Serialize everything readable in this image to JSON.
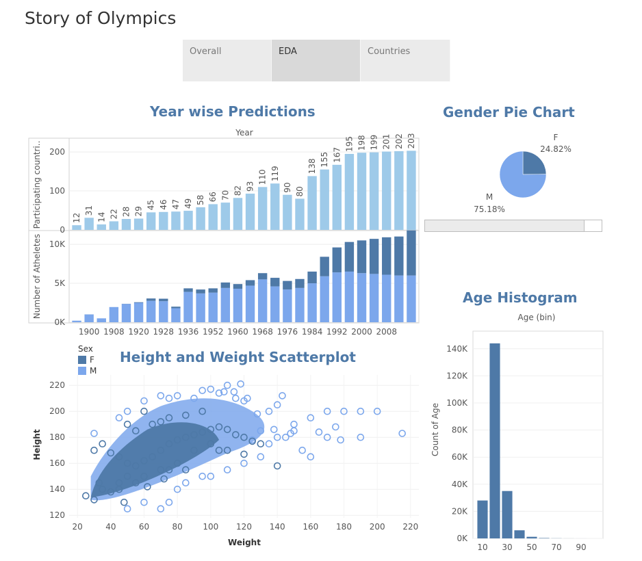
{
  "app": {
    "title": "Story of Olympics"
  },
  "tabs": [
    {
      "label": "Overall",
      "active": false
    },
    {
      "label": "EDA",
      "active": true
    },
    {
      "label": "Countries",
      "active": false
    }
  ],
  "colors": {
    "light_bar": "#9ecae9",
    "dark": "#4e79a7",
    "male": "#7ca7ec",
    "title": "#4e79a7"
  },
  "titles": {
    "year": "Year wise Predictions",
    "gender": "Gender Pie Chart",
    "age": "Age Histogram",
    "scatter": "Height and Weight Scatterplot"
  },
  "legend": {
    "title": "Sex",
    "f": "F",
    "m": "M"
  },
  "gender_slider": {
    "fraction": 0.9
  },
  "chart_data": [
    {
      "type": "bar",
      "id": "countries",
      "title": "Year",
      "ylabel": "Participating countri..",
      "ylim": [
        0,
        230
      ],
      "yticks": [
        0,
        100,
        200
      ],
      "xticks": [
        "1900",
        "1908",
        "1920",
        "1928",
        "1936",
        "1952",
        "1960",
        "1968",
        "1976",
        "1984",
        "1992",
        "2000",
        "2008"
      ],
      "values": [
        12,
        31,
        14,
        22,
        28,
        29,
        45,
        46,
        47,
        49,
        58,
        66,
        70,
        82,
        93,
        110,
        119,
        90,
        80,
        138,
        155,
        167,
        195,
        198,
        199,
        201,
        202,
        203
      ]
    },
    {
      "type": "bar",
      "id": "athletes",
      "stacked": true,
      "ylabel": "Number of Atheletes",
      "ylim": [
        0,
        11500
      ],
      "yticks": [
        {
          "v": 0,
          "label": "0K"
        },
        {
          "v": 5000,
          "label": "5K"
        },
        {
          "v": 10000,
          "label": "10K"
        }
      ],
      "series": [
        {
          "name": "M",
          "values": [
            200,
            1000,
            500,
            1950,
            2350,
            2500,
            2750,
            2700,
            1800,
            3900,
            3700,
            3800,
            4400,
            4300,
            4700,
            5500,
            4600,
            4200,
            4400,
            5000,
            5900,
            6400,
            6500,
            6300,
            6200,
            6100,
            6000,
            6000
          ]
        },
        {
          "name": "F",
          "values": [
            0,
            10,
            0,
            0,
            20,
            70,
            300,
            320,
            200,
            450,
            500,
            550,
            700,
            600,
            700,
            800,
            1100,
            1100,
            1150,
            1500,
            2500,
            3200,
            3800,
            4200,
            4500,
            4800,
            5000,
            5800
          ]
        }
      ]
    },
    {
      "type": "pie",
      "id": "gender",
      "slices": [
        {
          "name": "F",
          "value": 24.82,
          "label": "24.82%"
        },
        {
          "name": "M",
          "value": 75.18,
          "label": "75.18%"
        }
      ]
    },
    {
      "type": "bar",
      "id": "age",
      "title": "Age (bin)",
      "xlabel": "",
      "ylabel": "Count of Age",
      "ylim": [
        0,
        150000
      ],
      "yticks": [
        {
          "v": 0,
          "label": "0K"
        },
        {
          "v": 20000,
          "label": "20K"
        },
        {
          "v": 40000,
          "label": "40K"
        },
        {
          "v": 60000,
          "label": "60K"
        },
        {
          "v": 80000,
          "label": "80K"
        },
        {
          "v": 100000,
          "label": "100K"
        },
        {
          "v": 120000,
          "label": "120K"
        },
        {
          "v": 140000,
          "label": "140K"
        }
      ],
      "xticks": [
        10,
        30,
        50,
        70,
        90
      ],
      "bins": [
        10,
        20,
        30,
        40,
        50,
        60,
        70,
        80,
        90
      ],
      "values": [
        28000,
        144000,
        35000,
        6000,
        1200,
        300,
        100,
        30,
        10
      ]
    },
    {
      "type": "scatter",
      "id": "height_weight",
      "xlabel": "Weight",
      "ylabel": "Height",
      "xlim": [
        15,
        225
      ],
      "ylim": [
        118,
        228
      ],
      "xticks": [
        20,
        40,
        60,
        80,
        100,
        120,
        140,
        160,
        180,
        200,
        220
      ],
      "yticks": [
        120,
        140,
        160,
        180,
        200,
        220
      ],
      "series": [
        {
          "name": "M",
          "points": [
            [
              215,
              183
            ],
            [
              200,
              200
            ],
            [
              190,
              200
            ],
            [
              180,
              200
            ],
            [
              170,
              200
            ],
            [
              160,
              195
            ],
            [
              150,
              190
            ],
            [
              148,
              183
            ],
            [
              143,
              212
            ],
            [
              140,
              205
            ],
            [
              135,
              200
            ],
            [
              128,
              198
            ],
            [
              122,
              210
            ],
            [
              120,
              208
            ],
            [
              118,
              221
            ],
            [
              115,
              210
            ],
            [
              114,
              215
            ],
            [
              110,
              220
            ],
            [
              108,
              215
            ],
            [
              105,
              214
            ],
            [
              100,
              217
            ],
            [
              95,
              216
            ],
            [
              90,
              210
            ],
            [
              80,
              212
            ],
            [
              75,
              210
            ],
            [
              70,
              212
            ],
            [
              60,
              208
            ],
            [
              50,
              200
            ],
            [
              45,
              195
            ],
            [
              140,
              180
            ],
            [
              130,
              185
            ],
            [
              125,
              178
            ],
            [
              160,
              165
            ],
            [
              155,
              170
            ],
            [
              190,
              180
            ],
            [
              175,
              188
            ],
            [
              178,
              178
            ],
            [
              170,
              180
            ],
            [
              30,
              183
            ],
            [
              50,
              125
            ],
            [
              60,
              130
            ],
            [
              70,
              125
            ],
            [
              75,
              130
            ],
            [
              80,
              140
            ],
            [
              85,
              145
            ],
            [
              95,
              150
            ],
            [
              100,
              150
            ],
            [
              110,
              155
            ],
            [
              120,
              160
            ],
            [
              130,
              165
            ],
            [
              135,
              175
            ],
            [
              145,
              180
            ],
            [
              150,
              185
            ],
            [
              138,
              186
            ],
            [
              165,
              184
            ]
          ]
        },
        {
          "name": "F",
          "points": [
            [
              25,
              135
            ],
            [
              30,
              132
            ],
            [
              35,
              140
            ],
            [
              40,
              138
            ],
            [
              45,
              145
            ],
            [
              50,
              150
            ],
            [
              55,
              158
            ],
            [
              60,
              162
            ],
            [
              65,
              165
            ],
            [
              70,
              170
            ],
            [
              75,
              175
            ],
            [
              80,
              178
            ],
            [
              85,
              180
            ],
            [
              90,
              182
            ],
            [
              95,
              184
            ],
            [
              100,
              186
            ],
            [
              105,
              188
            ],
            [
              110,
              186
            ],
            [
              115,
              182
            ],
            [
              120,
              180
            ],
            [
              125,
              177
            ],
            [
              130,
              175
            ],
            [
              110,
              170
            ],
            [
              100,
              175
            ],
            [
              90,
              170
            ],
            [
              80,
              160
            ],
            [
              60,
              150
            ],
            [
              50,
              160
            ],
            [
              45,
              165
            ],
            [
              40,
              168
            ],
            [
              30,
              170
            ],
            [
              35,
              175
            ],
            [
              55,
              185
            ],
            [
              65,
              190
            ],
            [
              70,
              192
            ],
            [
              75,
              195
            ],
            [
              85,
              197
            ],
            [
              95,
              200
            ],
            [
              60,
              200
            ],
            [
              50,
              190
            ],
            [
              45,
              140
            ],
            [
              55,
              145
            ],
            [
              70,
              155
            ],
            [
              75,
              155
            ],
            [
              105,
              170
            ],
            [
              120,
              167
            ],
            [
              140,
              158
            ],
            [
              85,
              155
            ],
            [
              33,
              145
            ],
            [
              48,
              130
            ],
            [
              62,
              142
            ],
            [
              72,
              148
            ]
          ]
        }
      ]
    }
  ]
}
